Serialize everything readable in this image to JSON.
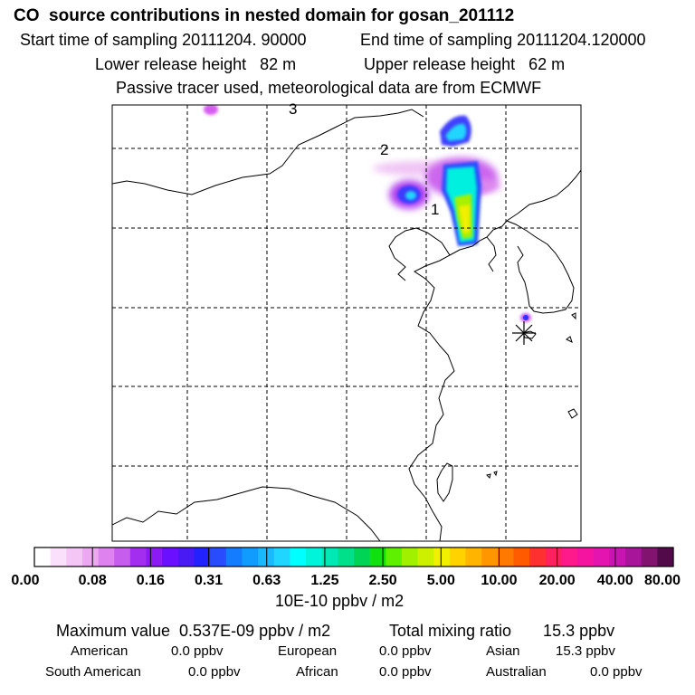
{
  "header": {
    "title": "CO  source contributions in nested domain for gosan_201112",
    "start_time": "Start time of sampling 20111204. 90000",
    "end_time": "End time of sampling 20111204.120000",
    "lower_height": "Lower release height   82 m",
    "upper_height": "Upper release height   62 m",
    "tracer_note": "Passive tracer used, meteorological data are from ECMWF"
  },
  "map": {
    "trajectory_labels": [
      "1",
      "2",
      "3"
    ]
  },
  "colorbar": {
    "colors": [
      "#ffffff",
      "#fbe0fb",
      "#f4c6f6",
      "#eca9f1",
      "#dd82ee",
      "#c75ded",
      "#a42ef0",
      "#8c1af4",
      "#6a0fff",
      "#4a1af5",
      "#2222ff",
      "#2a4cff",
      "#147dff",
      "#109bff",
      "#1ab8ff",
      "#20d5ff",
      "#00ffff",
      "#00f4dc",
      "#00e8b4",
      "#00e08a",
      "#00d456",
      "#10e010",
      "#5ef000",
      "#a0f000",
      "#ccf000",
      "#f0f000",
      "#ffd200",
      "#ffb400",
      "#ff9600",
      "#ff7800",
      "#ff5a00",
      "#ff3030",
      "#ff2060",
      "#ff1a8c",
      "#f514a0",
      "#e414b0",
      "#c814b0",
      "#a8149a",
      "#821470",
      "#520a4a"
    ],
    "tick_labels": [
      "0.00",
      "0.08",
      "0.16",
      "0.31",
      "0.63",
      "1.25",
      "2.50",
      "5.00",
      "10.00",
      "20.00",
      "40.00",
      "80.00"
    ],
    "unit": "10E-10 ppbv / m2"
  },
  "summary": {
    "maximum": "Maximum value  0.537E-09 ppbv / m2",
    "total": "Total mixing ratio       15.3 ppbv",
    "american_label": "American",
    "american_value": "0.0 ppbv",
    "european_label": "European",
    "european_value": "0.0 ppbv",
    "asian_label": "Asian",
    "asian_value": "15.3 ppbv",
    "south_american_label": "South American",
    "south_american_value": "0.0 ppbv",
    "african_label": "African",
    "african_value": "0.0 ppbv",
    "australian_label": "Australian",
    "australian_value": "0.0 ppbv"
  }
}
